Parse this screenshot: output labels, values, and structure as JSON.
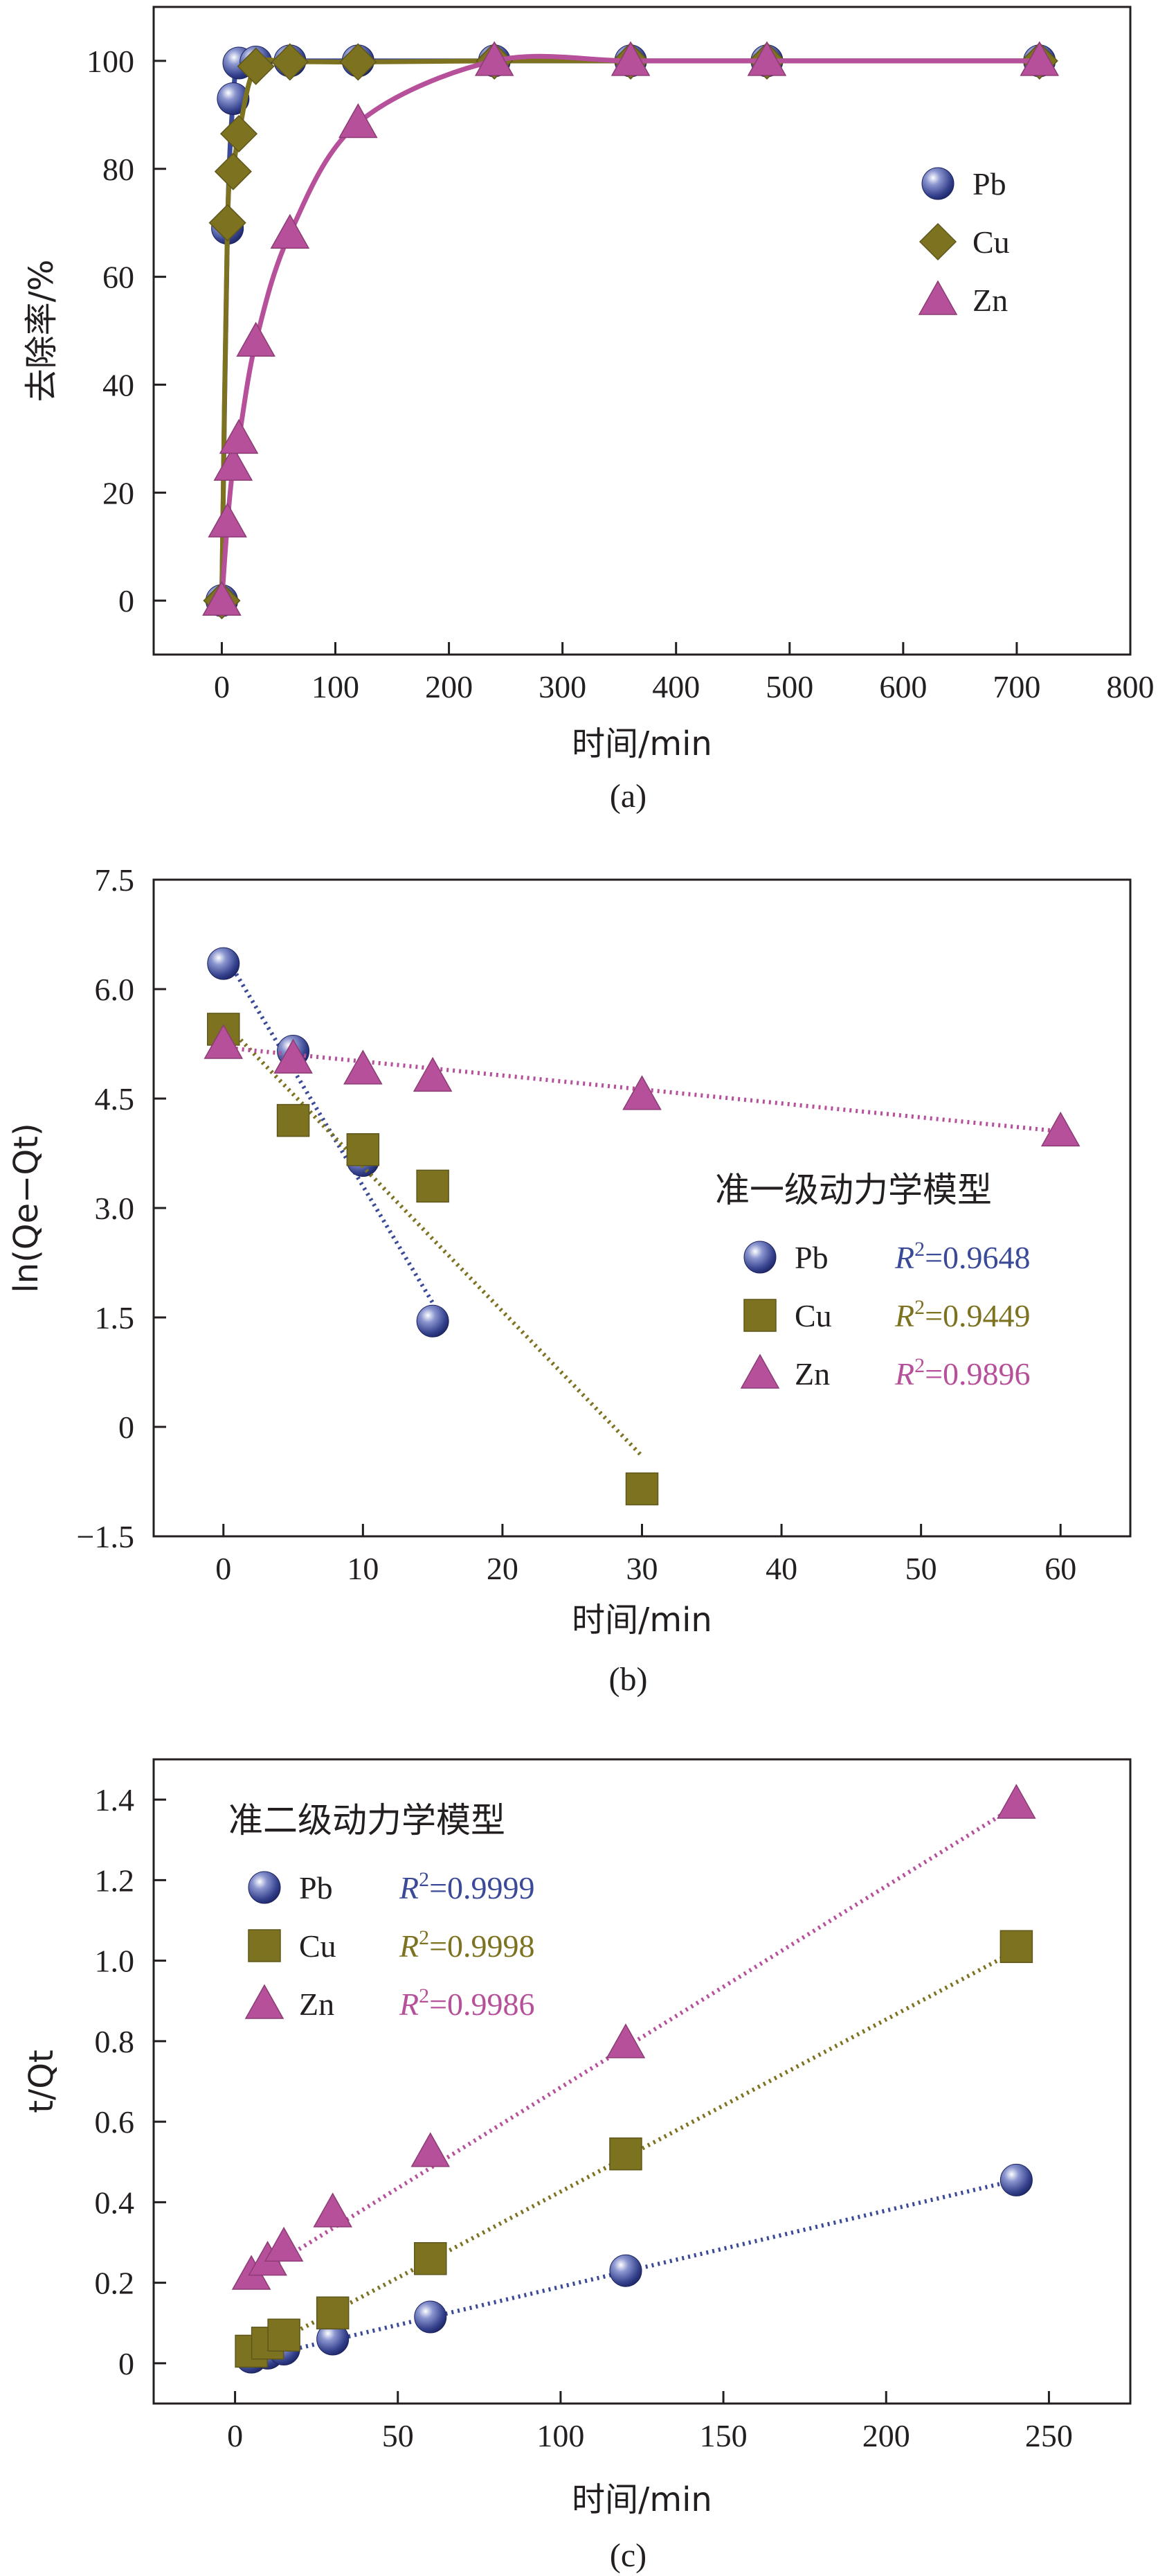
{
  "chart_data": [
    {
      "id": "a",
      "type": "line",
      "panel_label": "(a)",
      "title": "",
      "xlabel": "时间/min",
      "ylabel": "去除率/%",
      "xlim": [
        -60,
        800
      ],
      "ylim": [
        -10,
        110
      ],
      "xticks": [
        0,
        100,
        200,
        300,
        400,
        500,
        600,
        700,
        800
      ],
      "yticks": [
        0,
        20,
        40,
        60,
        80,
        100
      ],
      "xtick_labels": [
        "0",
        "100",
        "200",
        "300",
        "400",
        "500",
        "600",
        "700",
        "800"
      ],
      "ytick_labels": [
        "0",
        "20",
        "40",
        "60",
        "80",
        "100"
      ],
      "legend": {
        "position": "right",
        "title": ""
      },
      "series": [
        {
          "name": "Pb",
          "marker": "sphere",
          "color": "#3b4a98",
          "x": [
            0,
            5,
            10,
            15,
            30,
            60,
            120,
            240,
            360,
            480,
            720
          ],
          "y": [
            0,
            69,
            93,
            99.6,
            99.8,
            100,
            100,
            100,
            100,
            100,
            100
          ]
        },
        {
          "name": "Cu",
          "marker": "diamond",
          "color": "#7d7220",
          "x": [
            0,
            5,
            10,
            15,
            30,
            60,
            120,
            240,
            360,
            480,
            720
          ],
          "y": [
            0,
            70,
            79.5,
            86.5,
            99,
            99.8,
            99.8,
            100,
            100,
            100,
            100
          ]
        },
        {
          "name": "Zn",
          "marker": "triangle",
          "color": "#b7509a",
          "x": [
            0,
            5,
            10,
            15,
            30,
            60,
            120,
            240,
            360,
            480,
            720
          ],
          "y": [
            0,
            14.5,
            25,
            30,
            48,
            68,
            88.5,
            100,
            100,
            100,
            100
          ]
        }
      ]
    },
    {
      "id": "b",
      "type": "scatter",
      "panel_label": "(b)",
      "title": "",
      "xlabel": "时间/min",
      "ylabel": "ln(Qe−Qt)",
      "xlim": [
        -5,
        65
      ],
      "ylim": [
        -1.5,
        7.5
      ],
      "xticks": [
        0,
        10,
        20,
        30,
        40,
        50,
        60
      ],
      "yticks": [
        -1.5,
        0,
        1.5,
        3.0,
        4.5,
        6.0,
        7.5
      ],
      "xtick_labels": [
        "0",
        "10",
        "20",
        "30",
        "40",
        "50",
        "60"
      ],
      "ytick_labels": [
        "−1.5",
        "0",
        "1.5",
        "3.0",
        "4.5",
        "6.0",
        "7.5"
      ],
      "legend": {
        "position": "center-right",
        "title": "准一级动力学模型"
      },
      "series": [
        {
          "name": "Pb",
          "r2": "R2=0.9648",
          "marker": "sphere",
          "color": "#3b4a98",
          "x": [
            0,
            5,
            10,
            15
          ],
          "y": [
            6.35,
            5.15,
            3.65,
            1.45
          ],
          "fit": {
            "x": [
              0,
              15
            ],
            "y": [
              6.5,
              1.7
            ]
          }
        },
        {
          "name": "Cu",
          "r2": "R2=0.9449",
          "marker": "square",
          "color": "#7d7220",
          "x": [
            0,
            5,
            10,
            15,
            30
          ],
          "y": [
            5.45,
            4.2,
            3.8,
            3.3,
            -0.85
          ],
          "fit": {
            "x": [
              0,
              30
            ],
            "y": [
              5.55,
              -0.4
            ]
          }
        },
        {
          "name": "Zn",
          "r2": "R2=0.9896",
          "marker": "triangle",
          "color": "#b7509a",
          "x": [
            0,
            5,
            10,
            15,
            30,
            60
          ],
          "y": [
            5.25,
            5.05,
            4.9,
            4.8,
            4.55,
            4.05
          ],
          "fit": {
            "x": [
              0,
              60
            ],
            "y": [
              5.2,
              4.05
            ]
          }
        }
      ]
    },
    {
      "id": "c",
      "type": "scatter",
      "panel_label": "(c)",
      "title": "",
      "xlabel": "时间/min",
      "ylabel": "t/Qt",
      "xlim": [
        -25,
        275
      ],
      "ylim": [
        -0.1,
        1.5
      ],
      "xticks": [
        0,
        50,
        100,
        150,
        200,
        250
      ],
      "yticks": [
        0,
        0.2,
        0.4,
        0.6,
        0.8,
        1.0,
        1.2,
        1.4
      ],
      "xtick_labels": [
        "0",
        "50",
        "100",
        "150",
        "200",
        "250"
      ],
      "ytick_labels": [
        "0",
        "0.2",
        "0.4",
        "0.6",
        "0.8",
        "1.0",
        "1.2",
        "1.4"
      ],
      "legend": {
        "position": "top-left",
        "title": "准二级动力学模型"
      },
      "series": [
        {
          "name": "Pb",
          "r2": "R2=0.9999",
          "marker": "sphere",
          "color": "#3b4a98",
          "x": [
            5,
            10,
            15,
            30,
            60,
            120,
            240
          ],
          "y": [
            0.015,
            0.025,
            0.035,
            0.06,
            0.115,
            0.23,
            0.455
          ],
          "fit": {
            "x": [
              5,
              240
            ],
            "y": [
              0.01,
              0.455
            ]
          }
        },
        {
          "name": "Cu",
          "r2": "R2=0.9998",
          "marker": "square",
          "color": "#7d7220",
          "x": [
            5,
            10,
            15,
            30,
            60,
            120,
            240
          ],
          "y": [
            0.03,
            0.05,
            0.07,
            0.125,
            0.26,
            0.52,
            1.035
          ],
          "fit": {
            "x": [
              5,
              240
            ],
            "y": [
              0.02,
              1.025
            ]
          }
        },
        {
          "name": "Zn",
          "r2": "R2=0.9986",
          "marker": "triangle",
          "color": "#b7509a",
          "x": [
            5,
            10,
            15,
            30,
            60,
            120,
            240
          ],
          "y": [
            0.22,
            0.255,
            0.29,
            0.375,
            0.525,
            0.795,
            1.39
          ],
          "fit": {
            "x": [
              5,
              240
            ],
            "y": [
              0.21,
              1.385
            ]
          }
        }
      ]
    }
  ]
}
